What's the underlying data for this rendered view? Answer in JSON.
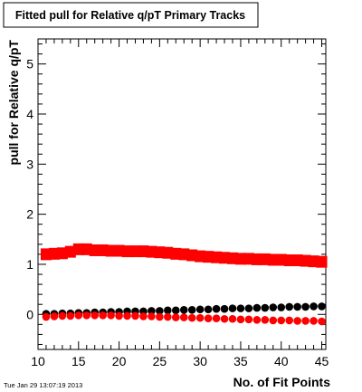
{
  "timestamp": "Tue Jan 29 13:07:19 2013",
  "chart_data": {
    "type": "scatter",
    "title": "Fitted pull for Relative q/pT Primary Tracks",
    "xlabel": "No. of Fit Points",
    "ylabel": "pull for Relative q/pT",
    "xlim": [
      10,
      45.5
    ],
    "ylim": [
      -0.7,
      5.5
    ],
    "x_ticks": [
      10,
      15,
      20,
      25,
      30,
      35,
      40,
      45
    ],
    "y_ticks": [
      0,
      1,
      2,
      3,
      4,
      5
    ],
    "grid": false,
    "colors": {
      "black_series": "#000000",
      "red_series": "#ff0000"
    },
    "x": [
      11,
      12,
      13,
      14,
      15,
      16,
      17,
      18,
      19,
      20,
      21,
      22,
      23,
      24,
      25,
      26,
      27,
      28,
      29,
      30,
      31,
      32,
      33,
      34,
      35,
      36,
      37,
      38,
      39,
      40,
      41,
      42,
      43,
      44,
      45
    ],
    "series": [
      {
        "color": "#ff0000",
        "marker": "square",
        "values": [
          1.2,
          1.21,
          1.22,
          1.25,
          1.3,
          1.3,
          1.28,
          1.28,
          1.27,
          1.27,
          1.26,
          1.26,
          1.26,
          1.25,
          1.24,
          1.23,
          1.21,
          1.2,
          1.18,
          1.16,
          1.15,
          1.14,
          1.13,
          1.12,
          1.11,
          1.11,
          1.1,
          1.1,
          1.09,
          1.09,
          1.08,
          1.08,
          1.07,
          1.06,
          1.05
        ]
      },
      {
        "color": "#000000",
        "marker": "circle",
        "values": [
          0.01,
          0.01,
          0.02,
          0.02,
          0.03,
          0.03,
          0.04,
          0.04,
          0.05,
          0.05,
          0.06,
          0.06,
          0.06,
          0.07,
          0.07,
          0.08,
          0.08,
          0.09,
          0.09,
          0.1,
          0.1,
          0.11,
          0.11,
          0.12,
          0.12,
          0.12,
          0.13,
          0.13,
          0.14,
          0.14,
          0.15,
          0.15,
          0.15,
          0.16,
          0.16
        ]
      },
      {
        "color": "#ff0000",
        "marker": "circle",
        "values": [
          -0.05,
          -0.04,
          -0.03,
          -0.03,
          -0.02,
          -0.02,
          -0.02,
          -0.02,
          -0.02,
          -0.03,
          -0.03,
          -0.03,
          -0.04,
          -0.04,
          -0.05,
          -0.05,
          -0.06,
          -0.06,
          -0.07,
          -0.07,
          -0.08,
          -0.08,
          -0.09,
          -0.09,
          -0.1,
          -0.1,
          -0.11,
          -0.11,
          -0.12,
          -0.12,
          -0.12,
          -0.13,
          -0.13,
          -0.13,
          -0.14
        ]
      }
    ]
  }
}
